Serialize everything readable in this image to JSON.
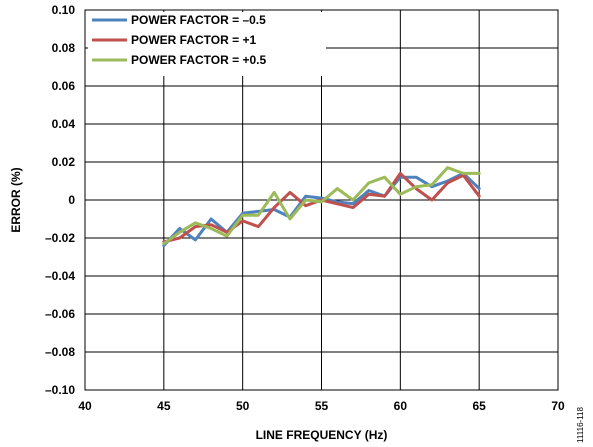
{
  "chart_data": {
    "type": "line",
    "xlabel": "LINE FREQUENCY (Hz)",
    "ylabel": "ERROR (%)",
    "xlim": [
      40,
      70
    ],
    "ylim": [
      -0.1,
      0.1
    ],
    "x_ticks": [
      40,
      45,
      50,
      55,
      60,
      65,
      70
    ],
    "y_ticks": [
      0.1,
      0.08,
      0.06,
      0.04,
      0.02,
      0,
      -0.02,
      -0.04,
      -0.06,
      -0.08,
      -0.1
    ],
    "x_tick_labels": [
      "40",
      "45",
      "50",
      "55",
      "60",
      "65",
      "70"
    ],
    "y_tick_labels": [
      "0.10",
      "0.08",
      "0.06",
      "0.04",
      "0.02",
      "0",
      "–0.02",
      "–0.04",
      "–0.06",
      "–0.08",
      "–0.10"
    ],
    "grid": true,
    "legend_position": "top-left",
    "x": [
      45,
      46,
      47,
      48,
      49,
      50,
      51,
      52,
      53,
      54,
      55,
      56,
      57,
      58,
      59,
      60,
      61,
      62,
      63,
      64,
      65
    ],
    "series": [
      {
        "name": "POWER FACTOR = –0.5",
        "color": "#4F81BD",
        "values": [
          -0.024,
          -0.015,
          -0.021,
          -0.01,
          -0.017,
          -0.007,
          -0.006,
          -0.005,
          -0.009,
          0.002,
          0.001,
          -0.001,
          -0.002,
          0.005,
          0.002,
          0.012,
          0.012,
          0.007,
          0.01,
          0.014,
          0.006
        ]
      },
      {
        "name": "POWER FACTOR = +1",
        "color": "#C0504D",
        "values": [
          -0.022,
          -0.02,
          -0.014,
          -0.013,
          -0.017,
          -0.011,
          -0.014,
          -0.004,
          0.004,
          -0.003,
          0.0,
          -0.002,
          -0.004,
          0.003,
          0.002,
          0.014,
          0.006,
          0.0,
          0.009,
          0.013,
          0.002
        ]
      },
      {
        "name": "POWER FACTOR = +0.5",
        "color": "#9BBB59",
        "values": [
          -0.023,
          -0.017,
          -0.012,
          -0.015,
          -0.019,
          -0.008,
          -0.008,
          0.004,
          -0.01,
          0.0,
          -0.001,
          0.006,
          0.0,
          0.009,
          0.012,
          0.003,
          0.007,
          0.008,
          0.017,
          0.014,
          0.014
        ]
      }
    ]
  },
  "figure_code": "11116-118"
}
